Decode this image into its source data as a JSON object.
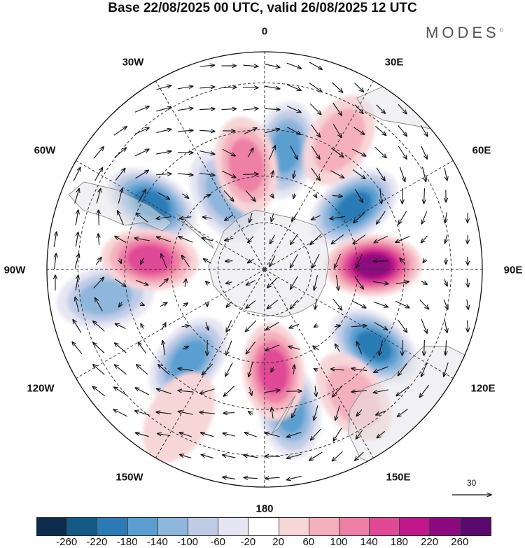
{
  "title": "Base 22/08/2025 00 UTC, valid 26/08/2025 12 UTC",
  "brand": "MODES",
  "brand_mark": "©",
  "longitude_labels": [
    "0",
    "30E",
    "60E",
    "90E",
    "120E",
    "150E",
    "180",
    "150W",
    "120W",
    "90W",
    "60W",
    "30W"
  ],
  "reference_vector": {
    "value": "30"
  },
  "colorbar": {
    "colors": [
      "#0b2c4a",
      "#135a87",
      "#2c7bb6",
      "#5a9fd0",
      "#8fb6dc",
      "#c0cce6",
      "#e6e6f2",
      "#ffffff",
      "#f7d6d8",
      "#f4b0bd",
      "#ee7fa5",
      "#e04996",
      "#c0178a",
      "#8c0a7e",
      "#5a0a6e"
    ],
    "tick_labels": [
      "-260",
      "-220",
      "-180",
      "-140",
      "-100",
      "-60",
      "-20",
      "20",
      "60",
      "100",
      "140",
      "180",
      "220",
      "260"
    ]
  },
  "anomaly_centers": [
    {
      "sign": "negative",
      "lon": 10,
      "lat": -51,
      "level": 4
    },
    {
      "sign": "negative",
      "lon": -60,
      "lat": -48,
      "level": 5
    },
    {
      "sign": "negative",
      "lon": 55,
      "lat": -55,
      "level": 5
    },
    {
      "sign": "negative",
      "lon": 125,
      "lat": -47,
      "level": 5
    },
    {
      "sign": "negative",
      "lon": 170,
      "lat": -44,
      "level": 4
    },
    {
      "sign": "negative",
      "lon": -140,
      "lat": -52,
      "level": 4
    },
    {
      "sign": "negative",
      "lon": -100,
      "lat": -38,
      "level": 3
    },
    {
      "sign": "negative",
      "lon": -28,
      "lat": -63,
      "level": 3
    },
    {
      "sign": "positive",
      "lon": -10,
      "lat": -56,
      "level": 3
    },
    {
      "sign": "positive",
      "lon": -85,
      "lat": -53,
      "level": 4
    },
    {
      "sign": "positive",
      "lon": 88,
      "lat": -55,
      "level": 6
    },
    {
      "sign": "positive",
      "lon": 175,
      "lat": -57,
      "level": 4
    },
    {
      "sign": "positive",
      "lon": 30,
      "lat": -42,
      "level": 2
    },
    {
      "sign": "positive",
      "lon": 145,
      "lat": -40,
      "level": 2
    },
    {
      "sign": "positive",
      "lon": -150,
      "lat": -35,
      "level": 1
    }
  ]
}
